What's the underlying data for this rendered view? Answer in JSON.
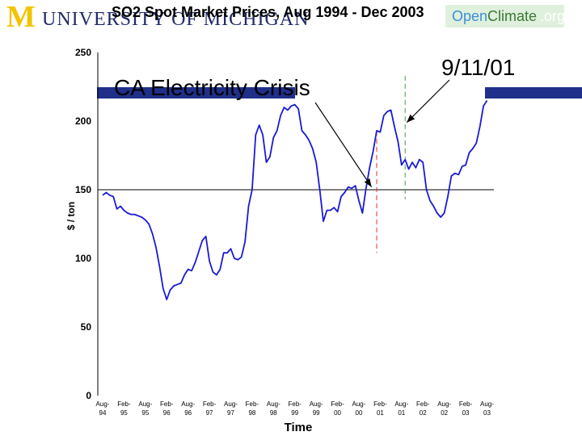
{
  "branding": {
    "university_initial": "M",
    "university_word": "UNIVERSITY OF MICHIGAN",
    "openclimate_open": "Open",
    "openclimate_climate": "Climate",
    "openclimate_org": ".org"
  },
  "title": "SO2 Spot Market Prices, Aug 1994 - Dec 2003",
  "colors": {
    "series": "#1a1ad6",
    "reference_line": "#000000",
    "ca_marker": "#e0302a",
    "sept11_marker": "#4a9a4a",
    "umich_maize": "#f2c400",
    "umich_blue": "#1f2a66",
    "band_blue": "#1f2f8a"
  },
  "chart_data": {
    "type": "line",
    "title": "SO2 Spot Market Prices, Aug 1994 - Dec 2003",
    "xlabel": "Time",
    "ylabel": "$ / ton",
    "ylim": [
      0,
      250
    ],
    "yticks": [
      0,
      50,
      100,
      150,
      200,
      250
    ],
    "xtick_labels": [
      [
        "Aug-",
        "94"
      ],
      [
        "Feb-",
        "95"
      ],
      [
        "Aug-",
        "95"
      ],
      [
        "Feb-",
        "96"
      ],
      [
        "Aug-",
        "96"
      ],
      [
        "Feb-",
        "97"
      ],
      [
        "Aug-",
        "97"
      ],
      [
        "Feb-",
        "98"
      ],
      [
        "Aug-",
        "98"
      ],
      [
        "Feb-",
        "99"
      ],
      [
        "Aug-",
        "99"
      ],
      [
        "Feb-",
        "00"
      ],
      [
        "Aug-",
        "00"
      ],
      [
        "Feb-",
        "01"
      ],
      [
        "Aug-",
        "01"
      ],
      [
        "Feb-",
        "02"
      ],
      [
        "Aug-",
        "02"
      ],
      [
        "Feb-",
        "03"
      ],
      [
        "Aug-",
        "03"
      ]
    ],
    "x_start": "Aug-94",
    "months_per_tick": 6,
    "reference_line_y": 150,
    "grid": false,
    "series": [
      {
        "values": [
          146,
          148,
          146,
          145,
          136,
          138,
          135,
          133,
          132,
          132,
          131,
          130,
          128,
          125,
          118,
          108,
          94,
          78,
          70,
          77,
          80,
          81,
          82,
          88,
          92,
          91,
          97,
          105,
          113,
          116,
          98,
          90,
          88,
          92,
          104,
          104,
          107,
          100,
          99,
          101,
          112,
          138,
          150,
          190,
          197,
          190,
          170,
          174,
          188,
          193,
          204,
          210,
          208,
          211,
          212,
          209,
          193,
          190,
          186,
          180,
          170,
          150,
          127,
          135,
          135,
          137,
          134,
          145,
          148,
          152,
          151,
          153,
          142,
          133,
          151,
          166,
          178,
          193,
          192,
          204,
          207,
          208,
          196,
          185,
          168,
          172,
          165,
          170,
          166,
          172,
          170,
          150,
          142,
          138,
          133,
          130,
          133,
          145,
          160,
          162,
          161,
          167,
          168,
          177,
          180,
          184,
          196,
          211,
          215
        ]
      }
    ],
    "annotations": [
      {
        "text": "CA Electricity Crisis",
        "at_x": "Jan-01"
      },
      {
        "text": "9/11/01",
        "at_x": "Sep-01"
      }
    ]
  }
}
